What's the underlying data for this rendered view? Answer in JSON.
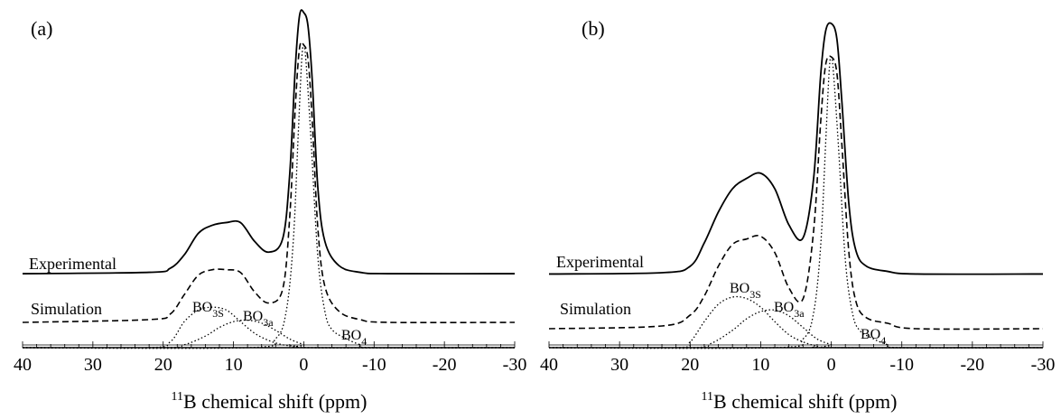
{
  "chart_data": [
    {
      "type": "line",
      "panel_label": "(a)",
      "xlabel_sup": "11",
      "xlabel": "B chemical shift (ppm)",
      "xlim": [
        40,
        -30
      ],
      "x_ticks": [
        "40",
        "30",
        "20",
        "10",
        "0",
        "-10",
        "-20",
        "-30"
      ],
      "annotations": {
        "experimental": "Experimental",
        "simulation": "Simulation",
        "bo3s_main": "BO",
        "bo3s_sub": "3S",
        "bo3a_main": "BO",
        "bo3a_sub": "3a",
        "bo4_main": "BO",
        "bo4_sub": "4"
      },
      "series": [
        {
          "name": "Experimental",
          "style": "solid",
          "x": [
            40,
            22,
            19,
            17,
            15,
            13,
            11,
            9,
            7,
            5,
            3,
            2,
            1.2,
            0.6,
            0,
            -0.6,
            -1.2,
            -2,
            -3,
            -5,
            -8,
            -12,
            -30
          ],
          "y": [
            0.03,
            0.035,
            0.05,
            0.1,
            0.18,
            0.21,
            0.22,
            0.22,
            0.15,
            0.11,
            0.16,
            0.4,
            0.8,
            0.99,
            1.0,
            0.95,
            0.75,
            0.35,
            0.15,
            0.06,
            0.035,
            0.03,
            0.03
          ]
        },
        {
          "name": "Simulation",
          "style": "dashed",
          "x": [
            40,
            22,
            19,
            17,
            15,
            13,
            11,
            9,
            7,
            5,
            3,
            2,
            1.2,
            0.6,
            0,
            -0.6,
            -1.2,
            -2,
            -3,
            -5,
            -8,
            -12,
            -30
          ],
          "y": [
            0.0,
            0.01,
            0.03,
            0.1,
            0.17,
            0.19,
            0.19,
            0.18,
            0.11,
            0.07,
            0.12,
            0.38,
            0.78,
            0.99,
            1.0,
            0.95,
            0.73,
            0.34,
            0.13,
            0.04,
            0.01,
            0.0,
            0.0
          ]
        },
        {
          "name": "BO3S",
          "style": "dotted",
          "x": [
            40,
            22,
            19,
            17,
            15,
            13,
            11,
            9,
            7,
            5,
            3,
            1,
            -1,
            -30
          ],
          "y": [
            0.0,
            0.0,
            0.04,
            0.18,
            0.26,
            0.28,
            0.26,
            0.18,
            0.1,
            0.05,
            0.02,
            0.01,
            0.0,
            0.0
          ]
        },
        {
          "name": "BO3a",
          "style": "dotted",
          "x": [
            40,
            20,
            17,
            14,
            12,
            10,
            8,
            6,
            4,
            2,
            0,
            -1,
            -30
          ],
          "y": [
            0.0,
            0.0,
            0.02,
            0.08,
            0.14,
            0.18,
            0.19,
            0.17,
            0.12,
            0.06,
            0.02,
            0.0,
            0.0
          ]
        },
        {
          "name": "BO4",
          "style": "dotted",
          "x": [
            40,
            8,
            4,
            2.5,
            1.5,
            0.8,
            0.3,
            0,
            -0.3,
            -1,
            -2,
            -3,
            -4,
            -6,
            -8,
            -10,
            -30
          ],
          "y": [
            0.0,
            0.0,
            0.03,
            0.12,
            0.35,
            0.7,
            0.95,
            1.0,
            0.95,
            0.7,
            0.3,
            0.12,
            0.06,
            0.03,
            0.01,
            0.0,
            0.0
          ]
        }
      ]
    },
    {
      "type": "line",
      "panel_label": "(b)",
      "xlabel_sup": "11",
      "xlabel": "B chemical shift (ppm)",
      "xlim": [
        40,
        -30
      ],
      "x_ticks": [
        "40",
        "30",
        "20",
        "10",
        "0",
        "-10",
        "-20",
        "-30"
      ],
      "annotations": {
        "experimental": "Experimental",
        "simulation": "Simulation",
        "bo3s_main": "BO",
        "bo3s_sub": "3S",
        "bo3a_main": "BO",
        "bo3a_sub": "3a",
        "bo4_main": "BO",
        "bo4_sub": "4"
      },
      "series": [
        {
          "name": "Experimental",
          "style": "solid",
          "x": [
            40,
            24,
            20,
            18,
            16,
            14,
            12,
            10,
            8,
            6,
            4,
            2.5,
            1.5,
            0.8,
            0,
            -0.8,
            -1.5,
            -2.5,
            -3.5,
            -5,
            -8,
            -12,
            -30
          ],
          "y": [
            0.03,
            0.035,
            0.06,
            0.15,
            0.27,
            0.36,
            0.4,
            0.42,
            0.36,
            0.22,
            0.17,
            0.4,
            0.8,
            0.97,
            1.0,
            0.94,
            0.7,
            0.3,
            0.12,
            0.06,
            0.04,
            0.03,
            0.03
          ]
        },
        {
          "name": "Simulation",
          "style": "dashed",
          "x": [
            40,
            24,
            20,
            18,
            16,
            14,
            12,
            10,
            8,
            6,
            4,
            2.5,
            1.5,
            0.8,
            0,
            -0.8,
            -1.5,
            -2.5,
            -3.5,
            -5,
            -8,
            -12,
            -30
          ],
          "y": [
            0.0,
            0.01,
            0.05,
            0.12,
            0.23,
            0.31,
            0.33,
            0.34,
            0.28,
            0.15,
            0.11,
            0.36,
            0.76,
            0.97,
            1.0,
            0.94,
            0.68,
            0.28,
            0.1,
            0.04,
            0.02,
            0.0,
            0.0
          ]
        },
        {
          "name": "BO3S",
          "style": "dotted",
          "x": [
            40,
            22,
            20,
            18,
            16,
            14,
            12,
            10,
            8,
            6,
            4,
            2,
            0,
            -30
          ],
          "y": [
            0.0,
            0.0,
            0.04,
            0.18,
            0.3,
            0.35,
            0.34,
            0.28,
            0.18,
            0.09,
            0.04,
            0.01,
            0.0,
            0.0
          ]
        },
        {
          "name": "BO3a",
          "style": "dotted",
          "x": [
            40,
            20,
            17,
            14,
            12,
            10,
            8,
            6,
            4,
            2,
            0,
            -1,
            -30
          ],
          "y": [
            0.0,
            0.0,
            0.03,
            0.12,
            0.2,
            0.25,
            0.26,
            0.22,
            0.14,
            0.06,
            0.02,
            0.0,
            0.0
          ]
        },
        {
          "name": "BO4",
          "style": "dotted",
          "x": [
            40,
            8,
            4,
            2.5,
            1.5,
            0.8,
            0.3,
            0,
            -0.3,
            -1,
            -2,
            -3,
            -4,
            -6,
            -8,
            -10,
            -30
          ],
          "y": [
            0.0,
            0.0,
            0.03,
            0.12,
            0.35,
            0.7,
            0.95,
            1.0,
            0.95,
            0.7,
            0.3,
            0.12,
            0.06,
            0.03,
            0.01,
            0.0,
            0.0
          ]
        }
      ]
    }
  ]
}
